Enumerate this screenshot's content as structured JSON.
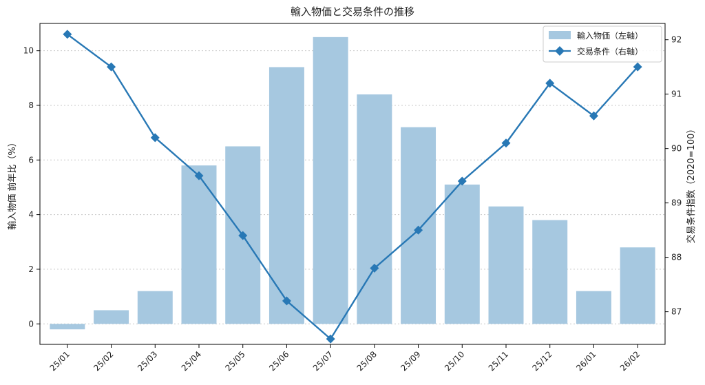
{
  "chart_data": {
    "type": "bar+line",
    "title": "輸入物価と交易条件の推移",
    "categories": [
      "25/01",
      "25/02",
      "25/03",
      "25/04",
      "25/05",
      "25/06",
      "25/07",
      "25/08",
      "25/09",
      "25/10",
      "25/11",
      "25/12",
      "26/01",
      "26/02"
    ],
    "left_axis": {
      "label": "輸入物価 前年比（%）",
      "range": [
        -0.75,
        11.0
      ],
      "ticks": [
        0,
        2,
        4,
        6,
        8,
        10
      ]
    },
    "right_axis": {
      "label": "交易条件指数（2020=100）",
      "range": [
        86.4,
        92.3
      ],
      "ticks": [
        87,
        88,
        89,
        90,
        91,
        92
      ]
    },
    "series": [
      {
        "name": "輸入物価（左軸）",
        "kind": "bar",
        "axis": "left",
        "color": "#a6c8e0",
        "values": [
          -0.2,
          0.5,
          1.2,
          5.8,
          6.5,
          9.4,
          10.5,
          8.4,
          7.2,
          5.1,
          4.3,
          3.8,
          1.2,
          2.8
        ]
      },
      {
        "name": "交易条件（右軸）",
        "kind": "line",
        "axis": "right",
        "marker": "diamond",
        "color": "#2878b5",
        "values": [
          92.1,
          91.5,
          90.2,
          89.5,
          88.4,
          87.2,
          86.5,
          87.8,
          88.5,
          89.4,
          90.1,
          91.2,
          90.6,
          91.5
        ]
      }
    ],
    "grid": "horizontal dotted",
    "legend_position": "top-right"
  }
}
